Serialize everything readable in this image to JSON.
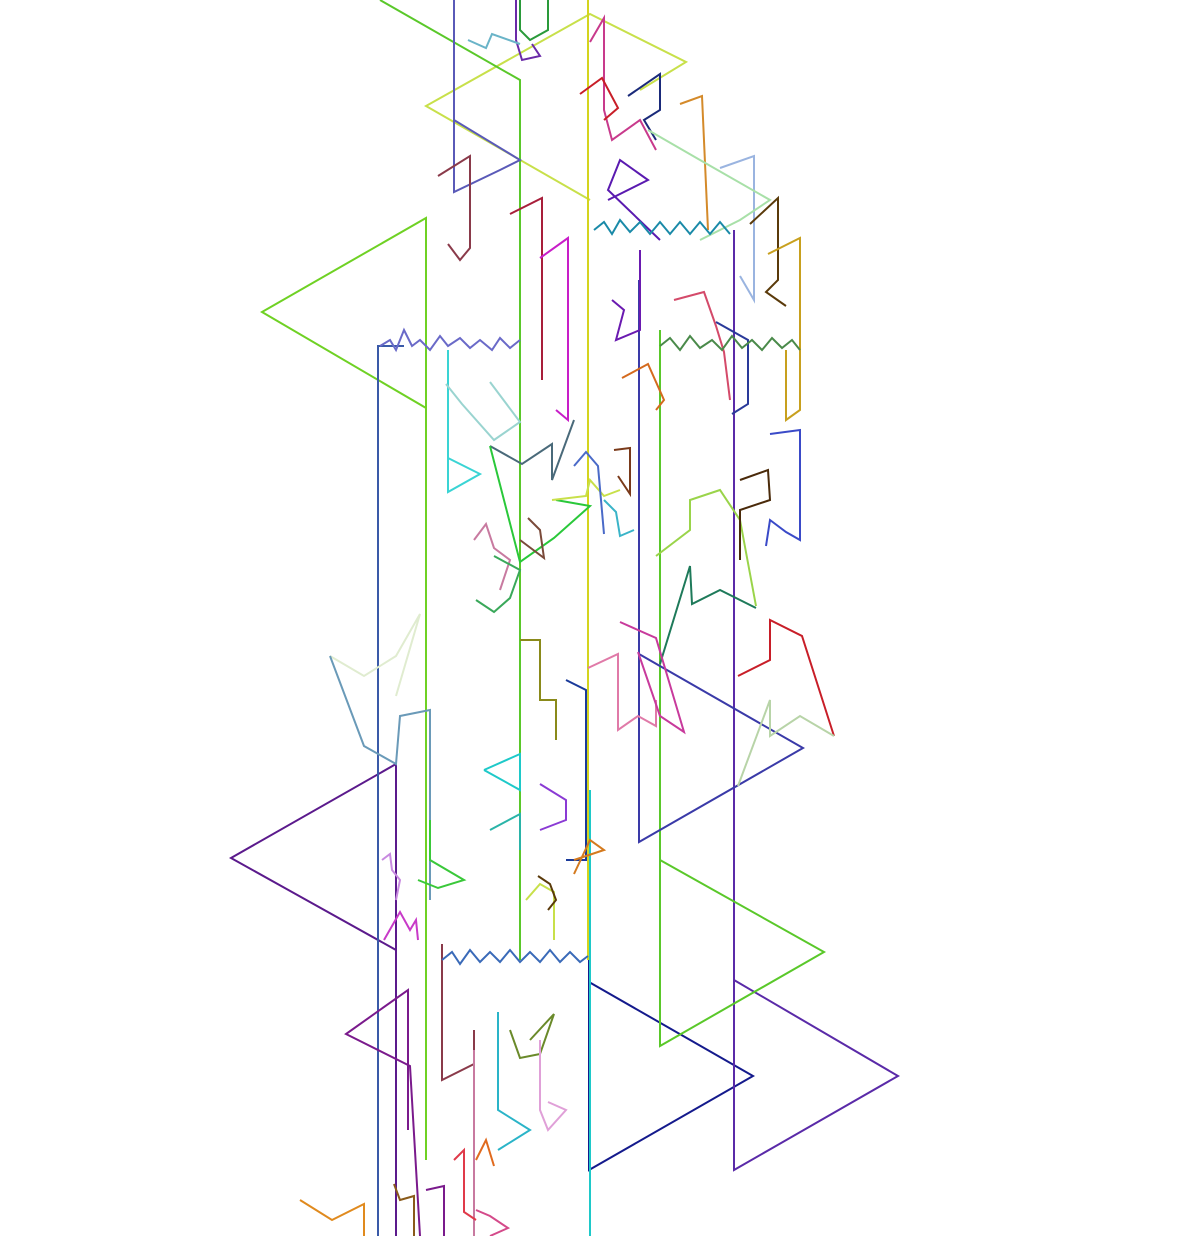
{
  "canvas": {
    "background": "#ffffff",
    "description_hidden": ""
  },
  "palette": {
    "green": "#6fd124",
    "lime": "#c8e04a",
    "purple": "#5b1a8c",
    "navy": "#141a8c",
    "blue": "#3a4aa8",
    "slate_blue": "#4a5ab0",
    "teal": "#1ec9c9",
    "pink": "#e07aa8",
    "red": "#c81e28",
    "orange": "#e08a1e",
    "brown": "#7a4a1a",
    "olive": "#8a8a1a",
    "gray": "#6a6a6a",
    "magenta": "#c81ec8",
    "light_blue": "#9ab4e0",
    "sage": "#b8d4a8",
    "violet": "#7a3ab8",
    "dark_green": "#1e7a5a",
    "cyan_gray": "#7ab0c0"
  }
}
